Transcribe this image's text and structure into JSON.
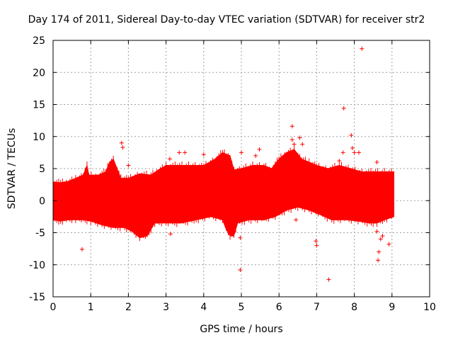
{
  "chart_data": {
    "type": "scatter",
    "title": "Day 174 of 2011, Sidereal Day-to-day VTEC variation (SDTVAR) for receiver str2",
    "xlabel": "GPS time / hours",
    "ylabel": "SDTVAR / TECUs",
    "xlim": [
      0,
      10
    ],
    "ylim": [
      -15,
      25
    ],
    "xticks": [
      0,
      1,
      2,
      3,
      4,
      5,
      6,
      7,
      8,
      9,
      10
    ],
    "yticks": [
      -15,
      -10,
      -5,
      0,
      5,
      10,
      15,
      20,
      25
    ],
    "grid": true,
    "marker": "+",
    "color": "#ff0000",
    "series": [
      {
        "name": "SDTVAR",
        "band_upper": [
          {
            "x": 0.0,
            "y": 2.9
          },
          {
            "x": 0.2,
            "y": 2.8
          },
          {
            "x": 0.4,
            "y": 3.0
          },
          {
            "x": 0.6,
            "y": 3.5
          },
          {
            "x": 0.8,
            "y": 4.0
          },
          {
            "x": 0.9,
            "y": 5.5
          },
          {
            "x": 0.95,
            "y": 4.0
          },
          {
            "x": 1.2,
            "y": 4.0
          },
          {
            "x": 1.4,
            "y": 4.5
          },
          {
            "x": 1.5,
            "y": 6.0
          },
          {
            "x": 1.6,
            "y": 6.5
          },
          {
            "x": 1.7,
            "y": 5.0
          },
          {
            "x": 1.8,
            "y": 3.5
          },
          {
            "x": 2.0,
            "y": 3.5
          },
          {
            "x": 2.3,
            "y": 4.2
          },
          {
            "x": 2.6,
            "y": 4.0
          },
          {
            "x": 2.8,
            "y": 4.8
          },
          {
            "x": 3.0,
            "y": 5.5
          },
          {
            "x": 3.3,
            "y": 5.5
          },
          {
            "x": 3.6,
            "y": 5.5
          },
          {
            "x": 4.0,
            "y": 5.5
          },
          {
            "x": 4.3,
            "y": 6.5
          },
          {
            "x": 4.5,
            "y": 7.5
          },
          {
            "x": 4.7,
            "y": 7.0
          },
          {
            "x": 4.8,
            "y": 4.8
          },
          {
            "x": 5.0,
            "y": 5.0
          },
          {
            "x": 5.3,
            "y": 5.5
          },
          {
            "x": 5.6,
            "y": 5.5
          },
          {
            "x": 5.8,
            "y": 5.0
          },
          {
            "x": 6.0,
            "y": 6.5
          },
          {
            "x": 6.2,
            "y": 7.5
          },
          {
            "x": 6.4,
            "y": 8.0
          },
          {
            "x": 6.6,
            "y": 6.5
          },
          {
            "x": 6.8,
            "y": 6.0
          },
          {
            "x": 7.0,
            "y": 5.5
          },
          {
            "x": 7.3,
            "y": 5.0
          },
          {
            "x": 7.6,
            "y": 5.5
          },
          {
            "x": 7.9,
            "y": 5.0
          },
          {
            "x": 8.2,
            "y": 4.5
          },
          {
            "x": 8.5,
            "y": 4.5
          },
          {
            "x": 8.8,
            "y": 4.5
          },
          {
            "x": 9.05,
            "y": 4.5
          }
        ],
        "band_lower": [
          {
            "x": 0.0,
            "y": -3.0
          },
          {
            "x": 0.2,
            "y": -3.2
          },
          {
            "x": 0.4,
            "y": -3.0
          },
          {
            "x": 0.6,
            "y": -3.0
          },
          {
            "x": 0.8,
            "y": -3.0
          },
          {
            "x": 1.0,
            "y": -3.2
          },
          {
            "x": 1.3,
            "y": -3.8
          },
          {
            "x": 1.6,
            "y": -4.2
          },
          {
            "x": 1.9,
            "y": -4.2
          },
          {
            "x": 2.1,
            "y": -4.8
          },
          {
            "x": 2.3,
            "y": -5.8
          },
          {
            "x": 2.5,
            "y": -5.5
          },
          {
            "x": 2.7,
            "y": -3.5
          },
          {
            "x": 3.0,
            "y": -3.5
          },
          {
            "x": 3.4,
            "y": -3.5
          },
          {
            "x": 3.8,
            "y": -3.0
          },
          {
            "x": 4.2,
            "y": -2.5
          },
          {
            "x": 4.5,
            "y": -3.0
          },
          {
            "x": 4.6,
            "y": -4.5
          },
          {
            "x": 4.7,
            "y": -5.5
          },
          {
            "x": 4.8,
            "y": -5.5
          },
          {
            "x": 4.9,
            "y": -3.5
          },
          {
            "x": 5.2,
            "y": -3.0
          },
          {
            "x": 5.6,
            "y": -3.0
          },
          {
            "x": 5.9,
            "y": -2.5
          },
          {
            "x": 6.2,
            "y": -1.5
          },
          {
            "x": 6.5,
            "y": -1.0
          },
          {
            "x": 6.8,
            "y": -1.5
          },
          {
            "x": 7.1,
            "y": -2.2
          },
          {
            "x": 7.4,
            "y": -3.0
          },
          {
            "x": 7.8,
            "y": -3.0
          },
          {
            "x": 8.1,
            "y": -3.2
          },
          {
            "x": 8.4,
            "y": -3.5
          },
          {
            "x": 8.6,
            "y": -3.5
          },
          {
            "x": 8.8,
            "y": -3.0
          },
          {
            "x": 9.05,
            "y": -2.5
          }
        ],
        "outliers": [
          {
            "x": 0.77,
            "y": -7.6
          },
          {
            "x": 1.82,
            "y": 9.0
          },
          {
            "x": 1.85,
            "y": 8.3
          },
          {
            "x": 2.0,
            "y": 5.5
          },
          {
            "x": 3.1,
            "y": 6.5
          },
          {
            "x": 3.12,
            "y": -5.2
          },
          {
            "x": 3.35,
            "y": 7.5
          },
          {
            "x": 3.5,
            "y": 7.5
          },
          {
            "x": 4.0,
            "y": 7.2
          },
          {
            "x": 4.97,
            "y": -10.8
          },
          {
            "x": 4.97,
            "y": -5.8
          },
          {
            "x": 5.0,
            "y": 7.5
          },
          {
            "x": 5.38,
            "y": 7.0
          },
          {
            "x": 5.48,
            "y": 8.0
          },
          {
            "x": 6.35,
            "y": 11.6
          },
          {
            "x": 6.35,
            "y": 9.5
          },
          {
            "x": 6.55,
            "y": 9.8
          },
          {
            "x": 6.62,
            "y": 8.8
          },
          {
            "x": 6.4,
            "y": 8.8
          },
          {
            "x": 6.45,
            "y": -3.0
          },
          {
            "x": 6.98,
            "y": -6.3
          },
          {
            "x": 7.0,
            "y": -7.0
          },
          {
            "x": 7.32,
            "y": -12.3
          },
          {
            "x": 7.72,
            "y": 14.4
          },
          {
            "x": 7.92,
            "y": 10.2
          },
          {
            "x": 7.95,
            "y": 8.2
          },
          {
            "x": 7.7,
            "y": 7.5
          },
          {
            "x": 7.6,
            "y": 6.2
          },
          {
            "x": 8.0,
            "y": 7.5
          },
          {
            "x": 8.12,
            "y": 7.5
          },
          {
            "x": 8.2,
            "y": 23.7
          },
          {
            "x": 8.6,
            "y": 6.0
          },
          {
            "x": 8.6,
            "y": -4.8
          },
          {
            "x": 8.63,
            "y": -9.3
          },
          {
            "x": 8.65,
            "y": -8.0
          },
          {
            "x": 8.7,
            "y": -6.0
          },
          {
            "x": 8.75,
            "y": -5.5
          },
          {
            "x": 8.92,
            "y": -6.8
          }
        ]
      }
    ]
  }
}
